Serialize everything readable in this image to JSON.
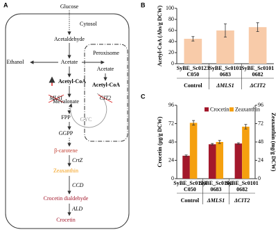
{
  "panel_labels": [
    "A",
    "B",
    "C"
  ],
  "diagram": {
    "glucose": "Glucose",
    "cytosol": "Cytosol",
    "acetaldehyde": "Acetaldehyde",
    "ethanol": "Ethanol",
    "acetate": "Acetate",
    "acetyl_coa": "Acetyl-CoA",
    "mevalonate": "Mevalonate",
    "fpp": "FPP",
    "ggpp": "GGPP",
    "beta_carotene": "β-carotene",
    "crtz": "CrtZ",
    "zeaxanthin": "Zeaxanthin",
    "ccd": "CCD",
    "crocetin_dialdehyde": "Crocetin dialdehyde",
    "ald": "ALD",
    "crocetin": "Crocetin",
    "peroxisome": "Peroxisome",
    "perox_acetate": "Acetate",
    "perox_acetyl_coa": "Acetyl-CoA",
    "mls1": "MLS1",
    "cit2": "CIT2",
    "gyc": "GYC"
  },
  "chart_data": [
    {
      "type": "bar",
      "ylabel": "Acetyl-CoA (Abs/g DCW)",
      "categories": [
        [
          "SyBE_Sc0123",
          "C050"
        ],
        [
          "SyBE_Sc0101",
          "0683"
        ],
        [
          "SyBE_Sc0101",
          "0682"
        ]
      ],
      "groups": [
        "Control",
        "ΔMLS1",
        "ΔCIT2"
      ],
      "values": [
        45,
        60,
        66
      ],
      "errors": [
        4,
        12,
        8
      ],
      "color": "#f8cba9",
      "ylim": [
        0,
        100
      ],
      "yticks": [
        0,
        20,
        40,
        60,
        80,
        100
      ]
    },
    {
      "type": "bar",
      "ylabel": "Crocetin (μg/g DCW)",
      "y2label": "Zeaxanthin (mg/g DCW)",
      "categories": [
        [
          "SyBE_Sc0123",
          "C050"
        ],
        [
          "SyBE_Sc0101",
          "0683"
        ],
        [
          "SyBE_Sc0101",
          "0682"
        ]
      ],
      "groups": [
        "Control",
        "ΔMLS1",
        "ΔCIT2"
      ],
      "series": [
        {
          "name": "Crocetin",
          "color": "#a3182b",
          "values": [
            30,
            45,
            46
          ],
          "errors": [
            1,
            1,
            1
          ]
        },
        {
          "name": "Zeaxanthin",
          "color": "#f5a00f",
          "values": [
            73,
            48,
            68
          ],
          "errors": [
            3,
            2,
            3
          ],
          "axis": "y2"
        }
      ],
      "ylim": [
        0,
        96
      ],
      "yticks": [
        0,
        24,
        48,
        72,
        96
      ],
      "y2lim": [
        0,
        96
      ],
      "y2ticks": [
        0,
        24,
        48,
        72,
        96
      ]
    }
  ]
}
